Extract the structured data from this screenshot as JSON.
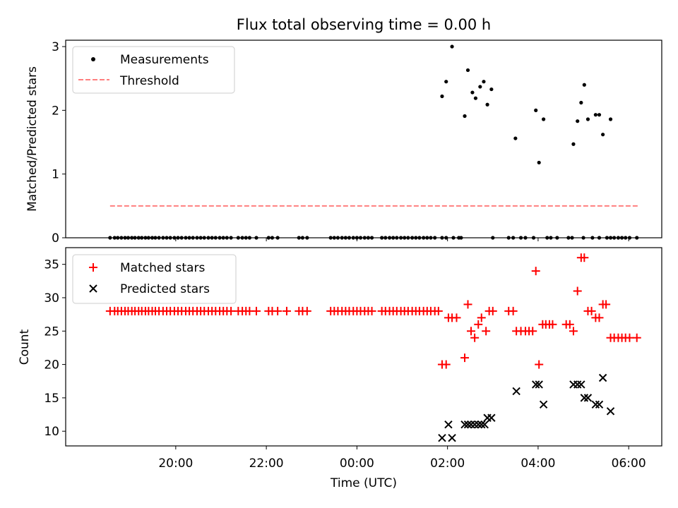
{
  "chart_data": [
    {
      "type": "scatter",
      "title": "Flux total observing time = 0.00 h",
      "xlabel": "",
      "ylabel": "Matched/Predicted stars",
      "ylim": [
        0,
        3.1
      ],
      "yticks": [
        0,
        1,
        2,
        3
      ],
      "ytick_labels": [
        "0",
        "1",
        "2",
        "3"
      ],
      "legend": "top-left",
      "series": [
        {
          "name": "Measurements",
          "marker": "dot",
          "color": "#000000",
          "points": [
            [
              18.55,
              0
            ],
            [
              18.65,
              0
            ],
            [
              18.72,
              0
            ],
            [
              18.8,
              0
            ],
            [
              18.88,
              0
            ],
            [
              18.95,
              0
            ],
            [
              19.03,
              0
            ],
            [
              19.1,
              0
            ],
            [
              19.18,
              0
            ],
            [
              19.25,
              0
            ],
            [
              19.33,
              0
            ],
            [
              19.4,
              0
            ],
            [
              19.48,
              0
            ],
            [
              19.55,
              0
            ],
            [
              19.63,
              0
            ],
            [
              19.72,
              0
            ],
            [
              19.8,
              0
            ],
            [
              19.88,
              0
            ],
            [
              19.97,
              0
            ],
            [
              20.05,
              0
            ],
            [
              20.13,
              0
            ],
            [
              20.22,
              0
            ],
            [
              20.3,
              0
            ],
            [
              20.38,
              0
            ],
            [
              20.47,
              0
            ],
            [
              20.55,
              0
            ],
            [
              20.63,
              0
            ],
            [
              20.72,
              0
            ],
            [
              20.8,
              0
            ],
            [
              20.88,
              0
            ],
            [
              20.97,
              0
            ],
            [
              21.05,
              0
            ],
            [
              21.13,
              0
            ],
            [
              21.22,
              0
            ],
            [
              21.38,
              0
            ],
            [
              21.47,
              0
            ],
            [
              21.55,
              0
            ],
            [
              21.63,
              0
            ],
            [
              21.78,
              0
            ],
            [
              22.05,
              0
            ],
            [
              22.13,
              0
            ],
            [
              22.25,
              0
            ],
            [
              22.72,
              0
            ],
            [
              22.8,
              0
            ],
            [
              22.9,
              0
            ],
            [
              23.42,
              0
            ],
            [
              23.5,
              0
            ],
            [
              23.58,
              0
            ],
            [
              23.67,
              0
            ],
            [
              23.75,
              0
            ],
            [
              23.83,
              0
            ],
            [
              23.92,
              0
            ],
            [
              24.0,
              0
            ],
            [
              24.08,
              0
            ],
            [
              24.17,
              0
            ],
            [
              24.25,
              0
            ],
            [
              24.33,
              0
            ],
            [
              24.55,
              0
            ],
            [
              24.63,
              0
            ],
            [
              24.72,
              0
            ],
            [
              24.8,
              0
            ],
            [
              24.88,
              0
            ],
            [
              24.97,
              0
            ],
            [
              25.05,
              0
            ],
            [
              25.13,
              0
            ],
            [
              25.22,
              0
            ],
            [
              25.3,
              0
            ],
            [
              25.38,
              0
            ],
            [
              25.47,
              0
            ],
            [
              25.55,
              0
            ],
            [
              25.63,
              0
            ],
            [
              25.72,
              0
            ],
            [
              25.88,
              0
            ],
            [
              25.97,
              0
            ],
            [
              26.13,
              0
            ],
            [
              26.25,
              0
            ],
            [
              26.3,
              0
            ],
            [
              27.0,
              0
            ],
            [
              27.35,
              0
            ],
            [
              27.45,
              0
            ],
            [
              27.62,
              0
            ],
            [
              27.72,
              0
            ],
            [
              27.9,
              0
            ],
            [
              28.2,
              0
            ],
            [
              28.28,
              0
            ],
            [
              28.42,
              0
            ],
            [
              28.67,
              0
            ],
            [
              28.75,
              0
            ],
            [
              29.0,
              0
            ],
            [
              29.2,
              0
            ],
            [
              29.35,
              0
            ],
            [
              29.52,
              0
            ],
            [
              29.6,
              0
            ],
            [
              29.68,
              0
            ],
            [
              29.77,
              0
            ],
            [
              29.85,
              0
            ],
            [
              29.93,
              0
            ],
            [
              30.02,
              0
            ],
            [
              30.18,
              0
            ],
            [
              25.88,
              2.22
            ],
            [
              25.97,
              2.45
            ],
            [
              26.1,
              3.0
            ],
            [
              26.38,
              1.91
            ],
            [
              26.45,
              2.63
            ],
            [
              26.55,
              2.28
            ],
            [
              26.62,
              2.19
            ],
            [
              26.72,
              2.37
            ],
            [
              26.8,
              2.45
            ],
            [
              26.88,
              2.09
            ],
            [
              26.97,
              2.33
            ],
            [
              27.5,
              1.56
            ],
            [
              27.95,
              2.0
            ],
            [
              28.02,
              1.18
            ],
            [
              28.12,
              1.86
            ],
            [
              28.78,
              1.47
            ],
            [
              28.87,
              1.83
            ],
            [
              28.95,
              2.12
            ],
            [
              29.02,
              2.4
            ],
            [
              29.1,
              1.86
            ],
            [
              29.27,
              1.93
            ],
            [
              29.35,
              1.93
            ],
            [
              29.43,
              1.62
            ],
            [
              29.6,
              1.86
            ]
          ]
        },
        {
          "name": "Threshold",
          "marker": "dashed-line",
          "color": "#ff7f7f",
          "points": [
            [
              18.55,
              0.5
            ],
            [
              30.2,
              0.5
            ]
          ]
        }
      ]
    },
    {
      "type": "scatter",
      "title": "",
      "xlabel": "Time (UTC)",
      "ylabel": "Count",
      "ylim": [
        7.8,
        37.5
      ],
      "yticks": [
        10,
        15,
        20,
        25,
        30,
        35
      ],
      "ytick_labels": [
        "10",
        "15",
        "20",
        "25",
        "30",
        "35"
      ],
      "xlim": [
        17.57,
        30.73
      ],
      "xticks": [
        20,
        22,
        24,
        26,
        28,
        30
      ],
      "xtick_labels": [
        "20:00",
        "22:00",
        "00:00",
        "02:00",
        "04:00",
        "06:00"
      ],
      "legend": "top-left",
      "series": [
        {
          "name": "Matched stars",
          "marker": "plus",
          "color": "#ff0000",
          "points": [
            [
              18.55,
              28
            ],
            [
              18.65,
              28
            ],
            [
              18.72,
              28
            ],
            [
              18.8,
              28
            ],
            [
              18.88,
              28
            ],
            [
              18.95,
              28
            ],
            [
              19.03,
              28
            ],
            [
              19.1,
              28
            ],
            [
              19.18,
              28
            ],
            [
              19.25,
              28
            ],
            [
              19.33,
              28
            ],
            [
              19.4,
              28
            ],
            [
              19.48,
              28
            ],
            [
              19.55,
              28
            ],
            [
              19.63,
              28
            ],
            [
              19.72,
              28
            ],
            [
              19.8,
              28
            ],
            [
              19.88,
              28
            ],
            [
              19.97,
              28
            ],
            [
              20.05,
              28
            ],
            [
              20.13,
              28
            ],
            [
              20.22,
              28
            ],
            [
              20.3,
              28
            ],
            [
              20.38,
              28
            ],
            [
              20.47,
              28
            ],
            [
              20.55,
              28
            ],
            [
              20.63,
              28
            ],
            [
              20.72,
              28
            ],
            [
              20.8,
              28
            ],
            [
              20.88,
              28
            ],
            [
              20.97,
              28
            ],
            [
              21.05,
              28
            ],
            [
              21.13,
              28
            ],
            [
              21.22,
              28
            ],
            [
              21.38,
              28
            ],
            [
              21.47,
              28
            ],
            [
              21.55,
              28
            ],
            [
              21.63,
              28
            ],
            [
              21.78,
              28
            ],
            [
              22.05,
              28
            ],
            [
              22.13,
              28
            ],
            [
              22.25,
              28
            ],
            [
              22.45,
              28
            ],
            [
              22.72,
              28
            ],
            [
              22.8,
              28
            ],
            [
              22.9,
              28
            ],
            [
              23.42,
              28
            ],
            [
              23.5,
              28
            ],
            [
              23.58,
              28
            ],
            [
              23.67,
              28
            ],
            [
              23.75,
              28
            ],
            [
              23.83,
              28
            ],
            [
              23.92,
              28
            ],
            [
              24.0,
              28
            ],
            [
              24.08,
              28
            ],
            [
              24.17,
              28
            ],
            [
              24.25,
              28
            ],
            [
              24.33,
              28
            ],
            [
              24.55,
              28
            ],
            [
              24.63,
              28
            ],
            [
              24.72,
              28
            ],
            [
              24.8,
              28
            ],
            [
              24.88,
              28
            ],
            [
              24.97,
              28
            ],
            [
              25.05,
              28
            ],
            [
              25.13,
              28
            ],
            [
              25.22,
              28
            ],
            [
              25.3,
              28
            ],
            [
              25.38,
              28
            ],
            [
              25.47,
              28
            ],
            [
              25.55,
              28
            ],
            [
              25.63,
              28
            ],
            [
              25.72,
              28
            ],
            [
              25.8,
              28
            ],
            [
              25.88,
              20
            ],
            [
              25.97,
              20
            ],
            [
              26.02,
              27
            ],
            [
              26.1,
              27
            ],
            [
              26.2,
              27
            ],
            [
              26.38,
              21
            ],
            [
              26.45,
              29
            ],
            [
              26.52,
              25
            ],
            [
              26.6,
              24
            ],
            [
              26.68,
              26
            ],
            [
              26.75,
              27
            ],
            [
              26.85,
              25
            ],
            [
              26.92,
              28
            ],
            [
              27.0,
              28
            ],
            [
              27.35,
              28
            ],
            [
              27.45,
              28
            ],
            [
              27.52,
              25
            ],
            [
              27.62,
              25
            ],
            [
              27.72,
              25
            ],
            [
              27.8,
              25
            ],
            [
              27.88,
              25
            ],
            [
              27.95,
              34
            ],
            [
              28.02,
              20
            ],
            [
              28.1,
              26
            ],
            [
              28.17,
              26
            ],
            [
              28.25,
              26
            ],
            [
              28.32,
              26
            ],
            [
              28.62,
              26
            ],
            [
              28.7,
              26
            ],
            [
              28.78,
              25
            ],
            [
              28.87,
              31
            ],
            [
              28.95,
              36
            ],
            [
              29.02,
              36
            ],
            [
              29.1,
              28
            ],
            [
              29.18,
              28
            ],
            [
              29.27,
              27
            ],
            [
              29.35,
              27
            ],
            [
              29.43,
              29
            ],
            [
              29.5,
              29
            ],
            [
              29.6,
              24
            ],
            [
              29.68,
              24
            ],
            [
              29.77,
              24
            ],
            [
              29.85,
              24
            ],
            [
              29.93,
              24
            ],
            [
              30.02,
              24
            ],
            [
              30.18,
              24
            ]
          ]
        },
        {
          "name": "Predicted stars",
          "marker": "x",
          "color": "#000000",
          "points": [
            [
              25.88,
              9
            ],
            [
              26.02,
              11
            ],
            [
              26.1,
              9
            ],
            [
              26.38,
              11
            ],
            [
              26.45,
              11
            ],
            [
              26.52,
              11
            ],
            [
              26.6,
              11
            ],
            [
              26.68,
              11
            ],
            [
              26.75,
              11
            ],
            [
              26.82,
              11
            ],
            [
              26.88,
              12
            ],
            [
              26.97,
              12
            ],
            [
              27.52,
              16
            ],
            [
              27.95,
              17
            ],
            [
              28.02,
              17
            ],
            [
              28.12,
              14
            ],
            [
              28.78,
              17
            ],
            [
              28.87,
              17
            ],
            [
              28.95,
              17
            ],
            [
              29.02,
              15
            ],
            [
              29.1,
              15
            ],
            [
              29.27,
              14
            ],
            [
              29.35,
              14
            ],
            [
              29.43,
              18
            ],
            [
              29.6,
              13
            ]
          ]
        }
      ]
    }
  ]
}
